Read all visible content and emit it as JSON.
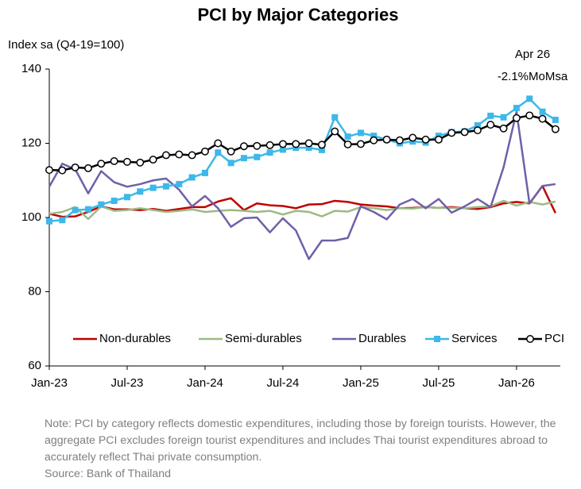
{
  "chart_data": {
    "type": "line",
    "title": "PCI by Major Categories",
    "y_label": "Index sa (Q4-19=100)",
    "annotation": [
      "Apr 26",
      "-2.1%MoMsa"
    ],
    "categories": [
      "Jan-23",
      null,
      null,
      null,
      null,
      null,
      "Jul-23",
      null,
      null,
      null,
      null,
      null,
      "Jan-24",
      null,
      null,
      null,
      null,
      null,
      "Jul-24",
      null,
      null,
      null,
      null,
      null,
      "Jan-25",
      null,
      null,
      null,
      null,
      null,
      "Jul-25",
      null,
      null,
      null,
      null,
      null,
      "Jan-26",
      null,
      null,
      null
    ],
    "ylim": [
      60,
      140
    ],
    "yticks": [
      60,
      80,
      100,
      120,
      140
    ],
    "series": [
      {
        "name": "Non-durables",
        "color": "#c00000",
        "marker": "none",
        "values": [
          101,
          100.2,
          100.3,
          101.5,
          103,
          102.2,
          102.2,
          102,
          102.3,
          101.8,
          102.3,
          102.8,
          102.8,
          104.3,
          105.2,
          102,
          103.8,
          103.3,
          103.1,
          102.5,
          103.5,
          103.6,
          104.5,
          104.2,
          103.5,
          103.2,
          103,
          102.5,
          102.6,
          102.8,
          102.6,
          102.8,
          102.5,
          102.3,
          102.8,
          103.8,
          104.2,
          103.8,
          108.5,
          101.2
        ]
      },
      {
        "name": "Semi-durables",
        "color": "#9cbb84",
        "marker": "none",
        "values": [
          101,
          101.5,
          102.8,
          99.6,
          103,
          101.8,
          102,
          102.5,
          102,
          101.5,
          101.8,
          102.2,
          101.5,
          101.8,
          102,
          101.8,
          101.5,
          101.8,
          100.8,
          101.8,
          101.5,
          100.3,
          101.8,
          101.6,
          102.8,
          102.5,
          102,
          102.5,
          102.4,
          102.8,
          102.6,
          102.6,
          102.5,
          102.8,
          103,
          104.5,
          103.2,
          104.2,
          103.5,
          104.3
        ]
      },
      {
        "name": "Durables",
        "color": "#7060a8",
        "marker": "none",
        "values": [
          108.3,
          114.5,
          113,
          106.5,
          112.5,
          109.5,
          108.3,
          109,
          110,
          110.5,
          107.5,
          103,
          105.8,
          102.5,
          97.5,
          99.8,
          100,
          96,
          99.8,
          96.5,
          88.8,
          93.8,
          93.8,
          94.5,
          103,
          101.5,
          99.5,
          103.5,
          105,
          102.5,
          105,
          101.3,
          103,
          105,
          102.8,
          113.5,
          128.5,
          103.8,
          108.5,
          109
        ]
      },
      {
        "name": "Services",
        "color": "#3db8e8",
        "marker": "square",
        "values": [
          99,
          99.3,
          102,
          102.2,
          103.5,
          104.5,
          105.5,
          107,
          108,
          108.4,
          109,
          110.8,
          112,
          117.5,
          114.7,
          116,
          116.3,
          117.5,
          118.3,
          118.8,
          118.8,
          118.2,
          127,
          121.8,
          122.8,
          122,
          121,
          120,
          120.5,
          120.2,
          122,
          123,
          123.2,
          124.8,
          127.4,
          127,
          129.5,
          132,
          128.5,
          126.3
        ]
      },
      {
        "name": "PCI",
        "color": "#000000",
        "marker": "circle",
        "values": [
          112.8,
          112.7,
          113.5,
          113.3,
          114.5,
          115.2,
          115,
          114.8,
          115.6,
          116.8,
          117,
          116.8,
          117.8,
          120,
          117.8,
          119.2,
          119.3,
          119.5,
          119.8,
          119.8,
          120,
          119.6,
          123.2,
          119.7,
          119.8,
          120.8,
          121,
          120.8,
          121.5,
          121,
          121,
          122.8,
          123,
          123.5,
          125,
          124,
          126.8,
          127.5,
          126.6,
          123.8
        ]
      }
    ]
  },
  "note": "Note: PCI by category reflects domestic expenditures, including those by foreign tourists. However, the aggregate PCI excludes foreign tourist expenditures and includes Thai tourist expenditures abroad to accurately reflect Thai private consumption.",
  "source": "Source: Bank of Thailand"
}
